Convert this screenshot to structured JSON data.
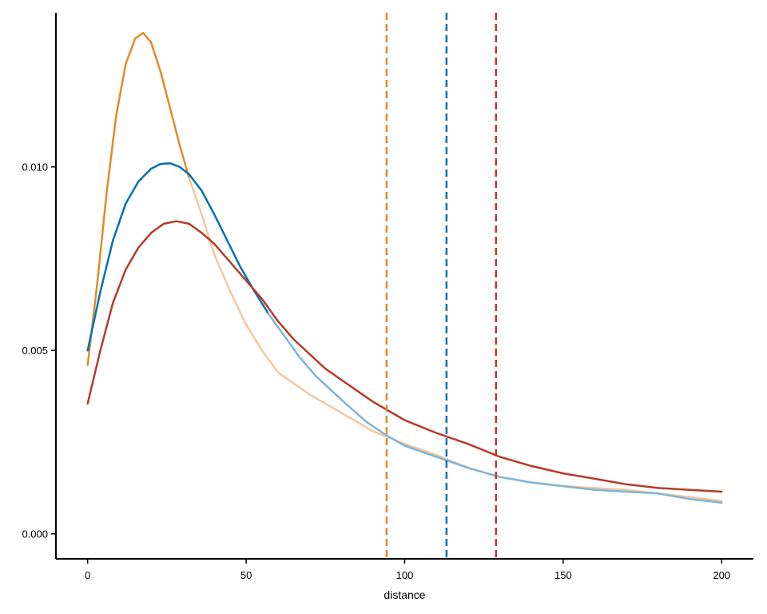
{
  "chart_data": {
    "type": "line",
    "title": "",
    "xlabel": "distance",
    "ylabel": "",
    "xlim": [
      -10,
      210
    ],
    "ylim": [
      -0.00068,
      0.0142
    ],
    "x_ticks": [
      0,
      50,
      100,
      150,
      200
    ],
    "x_tick_labels": [
      "0",
      "50",
      "100",
      "150",
      "200"
    ],
    "y_ticks": [
      0.0,
      0.005,
      0.01
    ],
    "y_tick_labels": [
      "0.000",
      "0.005",
      "0.010"
    ],
    "grid": false,
    "legend": "none",
    "series": [
      {
        "color": "#E08A2C",
        "segments": [
          {
            "color": "#E08A2C",
            "points": [
              [
                0,
                0.0046
              ],
              [
                3,
                0.0068
              ],
              [
                6,
                0.0093
              ],
              [
                9,
                0.0114
              ],
              [
                12,
                0.0128
              ],
              [
                15,
                0.0135
              ],
              [
                17.5,
                0.01365
              ],
              [
                20,
                0.0134
              ],
              [
                23,
                0.0126
              ],
              [
                26,
                0.0116
              ],
              [
                29,
                0.0106
              ],
              [
                32,
                0.0097
              ]
            ]
          },
          {
            "color": "#F2C8A0",
            "points": [
              [
                32,
                0.0097
              ],
              [
                36,
                0.0087
              ],
              [
                40,
                0.0076
              ],
              [
                45,
                0.0066
              ],
              [
                50,
                0.0057
              ],
              [
                55,
                0.005
              ],
              [
                60,
                0.0044
              ],
              [
                70,
                0.0038
              ],
              [
                80,
                0.0033
              ],
              [
                90,
                0.0028
              ],
              [
                100,
                0.00245
              ],
              [
                110,
                0.00215
              ],
              [
                120,
                0.0018
              ],
              [
                130,
                0.00155
              ],
              [
                140,
                0.0014
              ],
              [
                150,
                0.0013
              ],
              [
                160,
                0.00125
              ],
              [
                170,
                0.0012
              ],
              [
                180,
                0.0011
              ],
              [
                190,
                0.001
              ],
              [
                200,
                0.0009
              ]
            ]
          }
        ]
      },
      {
        "color": "#0072B2",
        "segments": [
          {
            "color": "#0072B2",
            "points": [
              [
                0,
                0.005
              ],
              [
                4,
                0.0066
              ],
              [
                8,
                0.008
              ],
              [
                12,
                0.009
              ],
              [
                16,
                0.0096
              ],
              [
                20,
                0.00995
              ],
              [
                23,
                0.01008
              ],
              [
                26,
                0.0101
              ],
              [
                29,
                0.01
              ],
              [
                32,
                0.0098
              ],
              [
                36,
                0.00935
              ],
              [
                40,
                0.0087
              ],
              [
                44,
                0.008
              ],
              [
                48,
                0.0073
              ],
              [
                52,
                0.0067
              ],
              [
                57,
                0.006
              ]
            ]
          },
          {
            "color": "#7FB4D8",
            "points": [
              [
                57,
                0.006
              ],
              [
                62,
                0.0054
              ],
              [
                67,
                0.0048
              ],
              [
                72,
                0.0043
              ],
              [
                77,
                0.0039
              ],
              [
                82,
                0.0035
              ],
              [
                88,
                0.00305
              ],
              [
                94,
                0.0027
              ],
              [
                100,
                0.0024
              ],
              [
                110,
                0.0021
              ],
              [
                120,
                0.0018
              ],
              [
                130,
                0.00155
              ],
              [
                140,
                0.0014
              ],
              [
                150,
                0.0013
              ],
              [
                160,
                0.0012
              ],
              [
                170,
                0.00115
              ],
              [
                180,
                0.0011
              ],
              [
                190,
                0.00095
              ],
              [
                200,
                0.00085
              ]
            ]
          }
        ]
      },
      {
        "color": "#B83A2B",
        "segments": [
          {
            "color": "#B83A2B",
            "points": [
              [
                0,
                0.00355
              ],
              [
                4,
                0.005
              ],
              [
                8,
                0.0063
              ],
              [
                12,
                0.0072
              ],
              [
                16,
                0.0078
              ],
              [
                20,
                0.0082
              ],
              [
                24,
                0.00845
              ],
              [
                28,
                0.00852
              ],
              [
                32,
                0.00845
              ],
              [
                36,
                0.0082
              ],
              [
                40,
                0.0079
              ],
              [
                45,
                0.0074
              ],
              [
                50,
                0.0069
              ],
              [
                55,
                0.0064
              ],
              [
                60,
                0.0058
              ],
              [
                65,
                0.0053
              ],
              [
                70,
                0.0049
              ],
              [
                75,
                0.0045
              ],
              [
                80,
                0.0042
              ],
              [
                85,
                0.0039
              ],
              [
                90,
                0.0036
              ],
              [
                95,
                0.00335
              ],
              [
                100,
                0.0031
              ],
              [
                110,
                0.00275
              ],
              [
                120,
                0.00245
              ],
              [
                130,
                0.0021
              ],
              [
                140,
                0.00185
              ],
              [
                150,
                0.00165
              ],
              [
                160,
                0.0015
              ],
              [
                170,
                0.00135
              ],
              [
                180,
                0.00125
              ],
              [
                190,
                0.0012
              ],
              [
                200,
                0.00115
              ]
            ]
          }
        ]
      }
    ],
    "vertical_lines": [
      {
        "x": 94.3,
        "color": "#E08A2C"
      },
      {
        "x": 113.2,
        "color": "#0072B2"
      },
      {
        "x": 128.8,
        "color": "#B83A2B"
      }
    ]
  }
}
